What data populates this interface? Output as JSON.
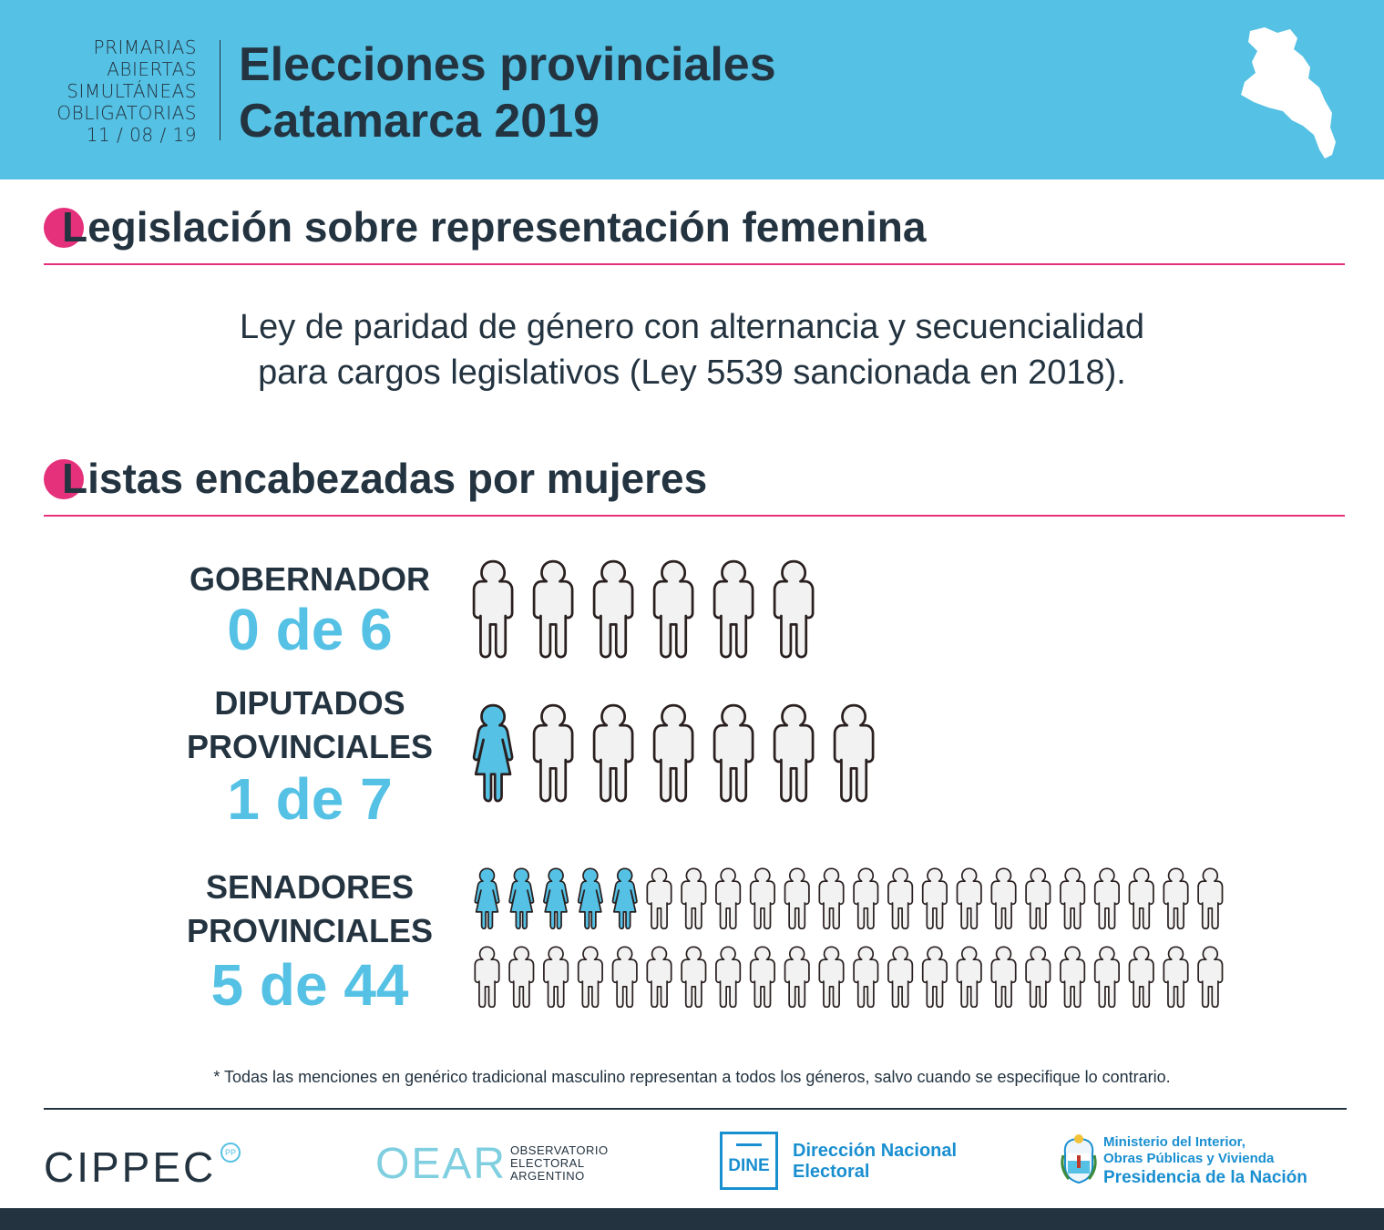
{
  "header": {
    "paso_lines": [
      "PRIMARIAS",
      "ABIERTAS",
      "SIMULTÁNEAS",
      "OBLIGATORIAS",
      "11 / 08 / 19"
    ],
    "title_lines": [
      "Elecciones provinciales",
      "Catamarca 2019"
    ]
  },
  "section1": {
    "title": "Legislación sobre representación femenina",
    "law_lines": [
      "Ley de paridad de género con alternancia y secuencialidad",
      "para cargos legislativos (Ley 5539 sancionada en 2018)."
    ]
  },
  "section2": {
    "title": "Listas encabezadas por mujeres",
    "categories": [
      {
        "label_lines": [
          "GOBERNADOR"
        ],
        "count": "0 de 6",
        "women": 0,
        "total": 6
      },
      {
        "label_lines": [
          "DIPUTADOS",
          "PROVINCIALES"
        ],
        "count": "1 de 7",
        "women": 1,
        "total": 7
      },
      {
        "label_lines": [
          "SENADORES",
          "PROVINCIALES"
        ],
        "count": "5 de 44",
        "women": 5,
        "total": 44
      }
    ]
  },
  "footnote": "* Todas las menciones en genérico tradicional masculino representan a todos los géneros, salvo cuando se especifique lo contrario.",
  "logos": {
    "cippec": "CIPPEC",
    "cippec_badge": "PP",
    "oear": "OEAR",
    "oear_sub": [
      "OBSERVATORIO",
      "ELECTORAL",
      "ARGENTINO"
    ],
    "dine": "DINE",
    "dine_text": [
      "Dirección Nacional",
      "Electoral"
    ],
    "ministry": [
      "Ministerio del Interior,",
      "Obras Públicas y Vivienda"
    ],
    "presidency": "Presidencia de la Nación"
  },
  "colors": {
    "header_bg": "#55c1e4",
    "accent_pink": "#e5307b",
    "text_dark": "#233340",
    "count_blue": "#55c1e4",
    "woman_fill": "#55c1e4",
    "man_fill": "#f2f2f2"
  }
}
